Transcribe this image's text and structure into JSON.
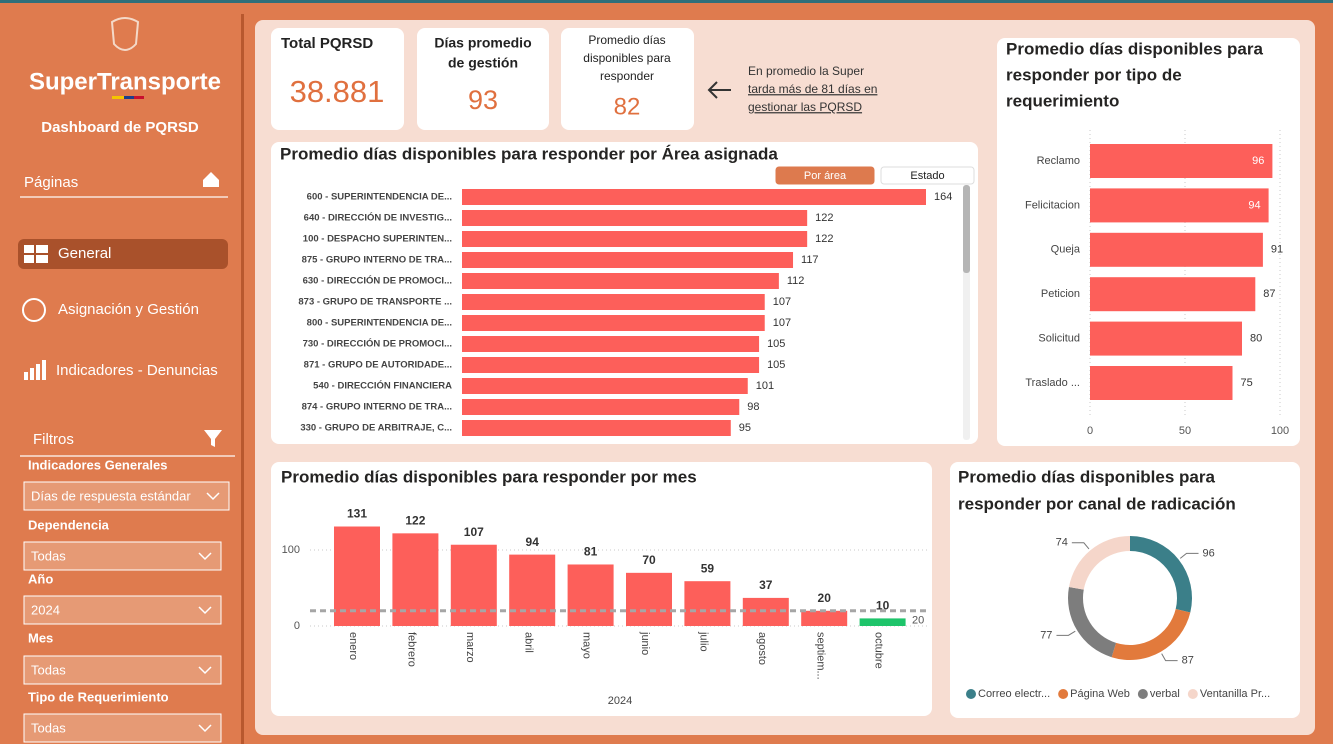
{
  "sidebar": {
    "brand": "SuperTransporte",
    "subtitle": "Dashboard de PQRSD",
    "pages_label": "Páginas",
    "pages": [
      "General",
      "Asignación y Gestión",
      "Indicadores - Denuncias"
    ],
    "filters_label": "Filtros",
    "filters": [
      {
        "label": "Indicadores Generales",
        "value": "Días de respuesta estándar"
      },
      {
        "label": "Dependencia",
        "value": "Todas"
      },
      {
        "label": "Año",
        "value": "2024"
      },
      {
        "label": "Mes",
        "value": "Todas"
      },
      {
        "label": "Tipo de Requerimiento",
        "value": "Todas"
      }
    ]
  },
  "kpis": [
    {
      "title": [
        "Total PQRSD"
      ],
      "value": "38.881"
    },
    {
      "title": [
        "Días promedio",
        "de gestión"
      ],
      "value": 93
    },
    {
      "title": [
        "Promedio días",
        "disponibles para",
        "responder"
      ],
      "value": 82
    }
  ],
  "note": {
    "text": "En promedio la Super",
    "link": [
      "tarda más de 81 días en",
      "gestionar las PQRSD"
    ]
  },
  "chart_data": [
    {
      "type": "bar",
      "orientation": "horizontal",
      "title": [
        "Promedio días disponibles para responder por Área asignada"
      ],
      "toggles": [
        "Por área",
        "Estado"
      ],
      "categories": [
        "600 - SUPERINTENDENCIA DE...",
        "640 - DIRECCIÓN DE INVESTIG...",
        "100 - DESPACHO SUPERINTEN...",
        "875 - GRUPO INTERNO DE TRA...",
        "630 - DIRECCIÓN DE PROMOCI...",
        "873 - GRUPO DE TRANSPORTE ...",
        "800 - SUPERINTENDENCIA DE...",
        "730 - DIRECCIÓN DE PROMOCI...",
        "871 - GRUPO DE AUTORIDADE...",
        "540 - DIRECCIÓN FINANCIERA",
        "874 - GRUPO INTERNO DE TRA...",
        "330 - GRUPO DE ARBITRAJE, C..."
      ],
      "values": [
        164,
        122,
        122,
        117,
        112,
        107,
        107,
        105,
        105,
        101,
        98,
        95
      ],
      "color": "#fd5f5a"
    },
    {
      "type": "bar",
      "orientation": "horizontal",
      "title": [
        "Promedio días disponibles para",
        "responder por tipo de",
        "requerimiento"
      ],
      "categories": [
        "Reclamo",
        "Felicitacion",
        "Queja",
        "Peticion",
        "Solicitud",
        "Traslado ..."
      ],
      "values": [
        96,
        94,
        91,
        87,
        80,
        75
      ],
      "color": "#fd5f5a",
      "xlim": [
        0,
        105
      ],
      "xticks": [
        0,
        50,
        100
      ],
      "grid": true
    },
    {
      "type": "bar",
      "orientation": "vertical",
      "title": [
        "Promedio días disponibles para responder por mes"
      ],
      "categories": [
        "enero",
        "febrero",
        "marzo",
        "abril",
        "mayo",
        "junio",
        "julio",
        "agosto",
        "septiem...",
        "octubre"
      ],
      "values": [
        131,
        122,
        107,
        94,
        81,
        70,
        59,
        37,
        20,
        10
      ],
      "colors": [
        "#fd5f5a",
        "#fd5f5a",
        "#fd5f5a",
        "#fd5f5a",
        "#fd5f5a",
        "#fd5f5a",
        "#fd5f5a",
        "#fd5f5a",
        "#fd5f5a",
        "#1ec46a"
      ],
      "ylim": [
        0,
        158
      ],
      "yticks": [
        0,
        100
      ],
      "grid": true,
      "xlabel": "2024",
      "reference_line": {
        "value": 20,
        "color": "#a6a6a6"
      }
    },
    {
      "type": "pie",
      "donut": true,
      "title": [
        "Promedio días disponibles para",
        "responder por canal de radicación"
      ],
      "categories": [
        "Correo electr...",
        "Página Web",
        "verbal",
        "Ventanilla Pr..."
      ],
      "values": [
        96,
        87,
        77,
        74
      ],
      "colors": [
        "#3b7f89",
        "#e27a3c",
        "#7d7d7d",
        "#f5d6ca"
      ],
      "legend": "bottom"
    }
  ]
}
